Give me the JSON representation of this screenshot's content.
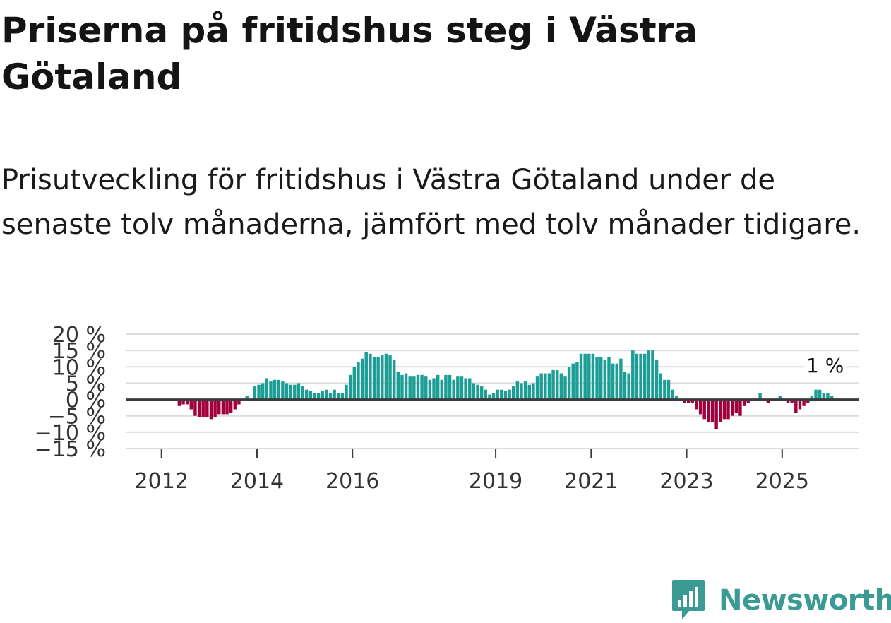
{
  "title": "Priserna på fritidshus steg i Västra Götaland",
  "subtitle": "Prisutveckling för fritidshus i Västra Götaland under de senaste tolv månaderna, jämfört med tolv månader tidigare.",
  "brand": {
    "name": "Newsworthy",
    "icon": "newsworthy-logo-icon"
  },
  "colors": {
    "positive": "#1a9e95",
    "negative": "#a0003c",
    "grid": "#dcdcdc",
    "zero_line": "#3c3c3c",
    "axis_text": "#333333"
  },
  "chart_data": {
    "type": "bar",
    "title": "",
    "xlabel": "",
    "ylabel": "",
    "ylim": [
      -15,
      20
    ],
    "y_ticks": [
      20,
      15,
      10,
      5,
      0,
      -5,
      -10,
      -15
    ],
    "y_tick_labels": [
      "20 %",
      "15 %",
      "10 %",
      "5 %",
      "0 %",
      "−5 %",
      "−10 %",
      "−15 %"
    ],
    "x_ticks": [
      2012,
      2014,
      2016,
      2019,
      2021,
      2023,
      2025
    ],
    "x_tick_labels": [
      "2012",
      "2014",
      "2016",
      "2019",
      "2021",
      "2023",
      "2025"
    ],
    "x_start": 2011.25,
    "x_end": 2026.6,
    "start_month": "2011-10",
    "series": [
      {
        "name": "Prisutveckling",
        "values": [
          0,
          0,
          0,
          0,
          0,
          0,
          0,
          -2,
          -1.5,
          -1.5,
          -3,
          -5,
          -5.5,
          -5.5,
          -5.5,
          -6,
          -5.5,
          -4.5,
          -4.5,
          -4.5,
          -4,
          -3,
          -1.5,
          0,
          1,
          0,
          4,
          4.5,
          5,
          6.5,
          5.5,
          6,
          6,
          5.5,
          5,
          4.5,
          4.5,
          5,
          4,
          3,
          2.5,
          2,
          2,
          2.5,
          3,
          2,
          3,
          2,
          2,
          4.5,
          7.5,
          10,
          11.5,
          12.5,
          14.5,
          14,
          13,
          13,
          13.5,
          14,
          13.5,
          12,
          8.5,
          7.5,
          8,
          7,
          7,
          7.5,
          7.5,
          7,
          6,
          6.5,
          7.5,
          6,
          7.5,
          7.5,
          6,
          7,
          7,
          6.5,
          6.5,
          5,
          4.5,
          4,
          3,
          1.5,
          2,
          3,
          3,
          2.5,
          3,
          4,
          5.5,
          5,
          5.5,
          4.5,
          5,
          7,
          8,
          8,
          8,
          9,
          9,
          8,
          7,
          10,
          11,
          11.5,
          14,
          14,
          14,
          14,
          13,
          13,
          12,
          13,
          11,
          11,
          12.5,
          8.5,
          8,
          15,
          14,
          14,
          14,
          15,
          15,
          12,
          8,
          6,
          6,
          3,
          1,
          0,
          -1,
          -1,
          -1,
          -3,
          -4.5,
          -6,
          -7,
          -7,
          -9,
          -7,
          -6,
          -6,
          -5,
          -4,
          -5,
          -2,
          -1,
          0,
          0,
          2,
          0,
          -1,
          0,
          0,
          1,
          0,
          -1,
          -1,
          -4,
          -3,
          -2,
          -1,
          1,
          3,
          3,
          2,
          2,
          1,
          0,
          0,
          0,
          0,
          0,
          0,
          0,
          0
        ]
      }
    ],
    "annotations": [
      {
        "text": "1 %",
        "year": 2025.9,
        "value": 1
      }
    ]
  }
}
